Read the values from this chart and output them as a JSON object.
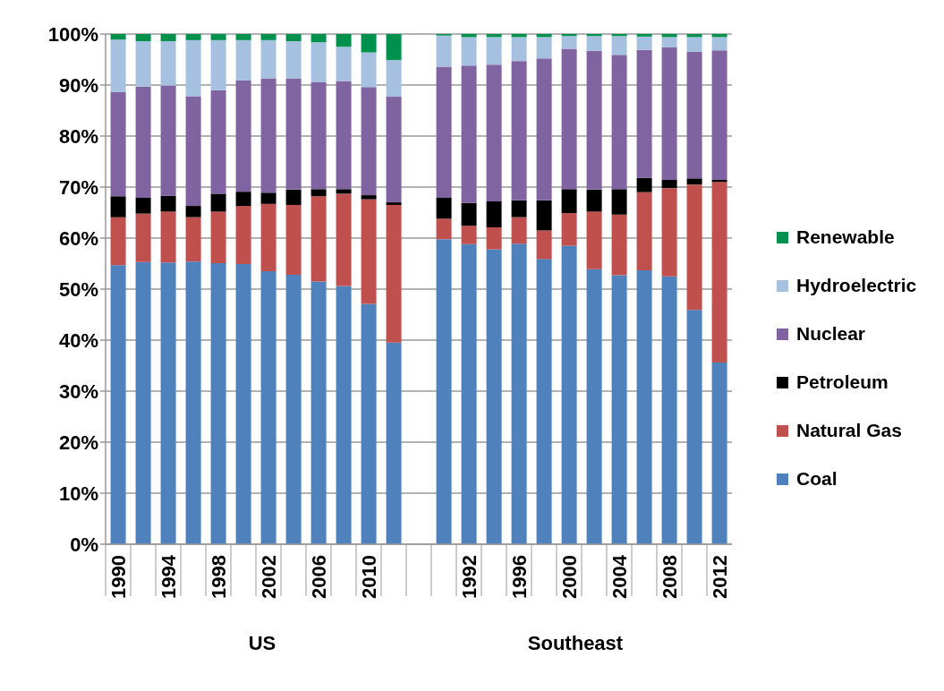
{
  "chart_data": {
    "type": "bar",
    "stacked": true,
    "categories": [
      "1990",
      null,
      "1994",
      null,
      "1998",
      null,
      "2002",
      null,
      "2006",
      null,
      "2010",
      null,
      null,
      null,
      "1992",
      null,
      "1996",
      null,
      "2000",
      null,
      "2004",
      null,
      "2008",
      null,
      "2012"
    ],
    "series": [
      {
        "name": "Coal",
        "color": "#4f81bd",
        "values": [
          54.7,
          55.3,
          55.2,
          55.4,
          55.1,
          54.9,
          53.5,
          52.8,
          51.5,
          50.6,
          47.1,
          39.5,
          null,
          59.8,
          58.8,
          57.8,
          58.9,
          55.9,
          58.5,
          53.9,
          52.7,
          53.7,
          52.5,
          45.9,
          35.6
        ]
      },
      {
        "name": "Natural Gas",
        "color": "#c0504d",
        "values": [
          9.4,
          9.5,
          10.0,
          8.7,
          10.1,
          11.4,
          13.2,
          13.7,
          16.7,
          18.1,
          20.5,
          27.0,
          null,
          4.0,
          3.6,
          4.3,
          5.2,
          5.6,
          6.4,
          11.3,
          11.9,
          15.3,
          17.3,
          24.6,
          35.4
        ]
      },
      {
        "name": "Petroleum",
        "color": "#000000",
        "values": [
          4.1,
          3.1,
          3.1,
          2.2,
          3.5,
          2.8,
          2.2,
          3.0,
          1.4,
          0.9,
          0.8,
          0.5,
          null,
          4.1,
          4.5,
          5.1,
          3.3,
          5.9,
          4.7,
          4.3,
          5.0,
          2.8,
          1.6,
          1.2,
          0.4
        ]
      },
      {
        "name": "Nuclear",
        "color": "#8064a2",
        "values": [
          20.4,
          21.8,
          21.6,
          21.5,
          20.3,
          21.8,
          22.4,
          21.8,
          21.0,
          21.2,
          21.2,
          20.7,
          null,
          25.7,
          26.9,
          26.8,
          27.3,
          27.8,
          27.5,
          27.2,
          26.3,
          25.1,
          26.0,
          24.8,
          25.4
        ]
      },
      {
        "name": "Hydroelectric",
        "color": "#a6c1df",
        "values": [
          10.3,
          8.9,
          8.7,
          11.0,
          9.8,
          7.9,
          7.5,
          7.3,
          7.8,
          6.7,
          6.8,
          7.2,
          null,
          6.1,
          5.6,
          5.4,
          4.7,
          4.2,
          2.5,
          2.9,
          3.7,
          2.6,
          2.0,
          2.9,
          2.6
        ]
      },
      {
        "name": "Renewable",
        "color": "#00914d",
        "values": [
          1.1,
          1.4,
          1.4,
          1.2,
          1.2,
          1.2,
          1.2,
          1.4,
          1.6,
          2.5,
          3.6,
          5.1,
          null,
          0.3,
          0.6,
          0.6,
          0.6,
          0.6,
          0.4,
          0.4,
          0.4,
          0.5,
          0.6,
          0.6,
          0.6
        ]
      }
    ],
    "ylim": [
      0,
      100
    ],
    "yticks": [
      {
        "value": 0,
        "label": "0%"
      },
      {
        "value": 10,
        "label": "10%"
      },
      {
        "value": 20,
        "label": "20%"
      },
      {
        "value": 30,
        "label": "30%"
      },
      {
        "value": 40,
        "label": "40%"
      },
      {
        "value": 50,
        "label": "50%"
      },
      {
        "value": 60,
        "label": "60%"
      },
      {
        "value": 70,
        "label": "70%"
      },
      {
        "value": 80,
        "label": "80%"
      },
      {
        "value": 90,
        "label": "90%"
      },
      {
        "value": 100,
        "label": "100%"
      }
    ],
    "grid": "y",
    "legend": "right",
    "annotations": [
      "US",
      "Southeast"
    ]
  }
}
